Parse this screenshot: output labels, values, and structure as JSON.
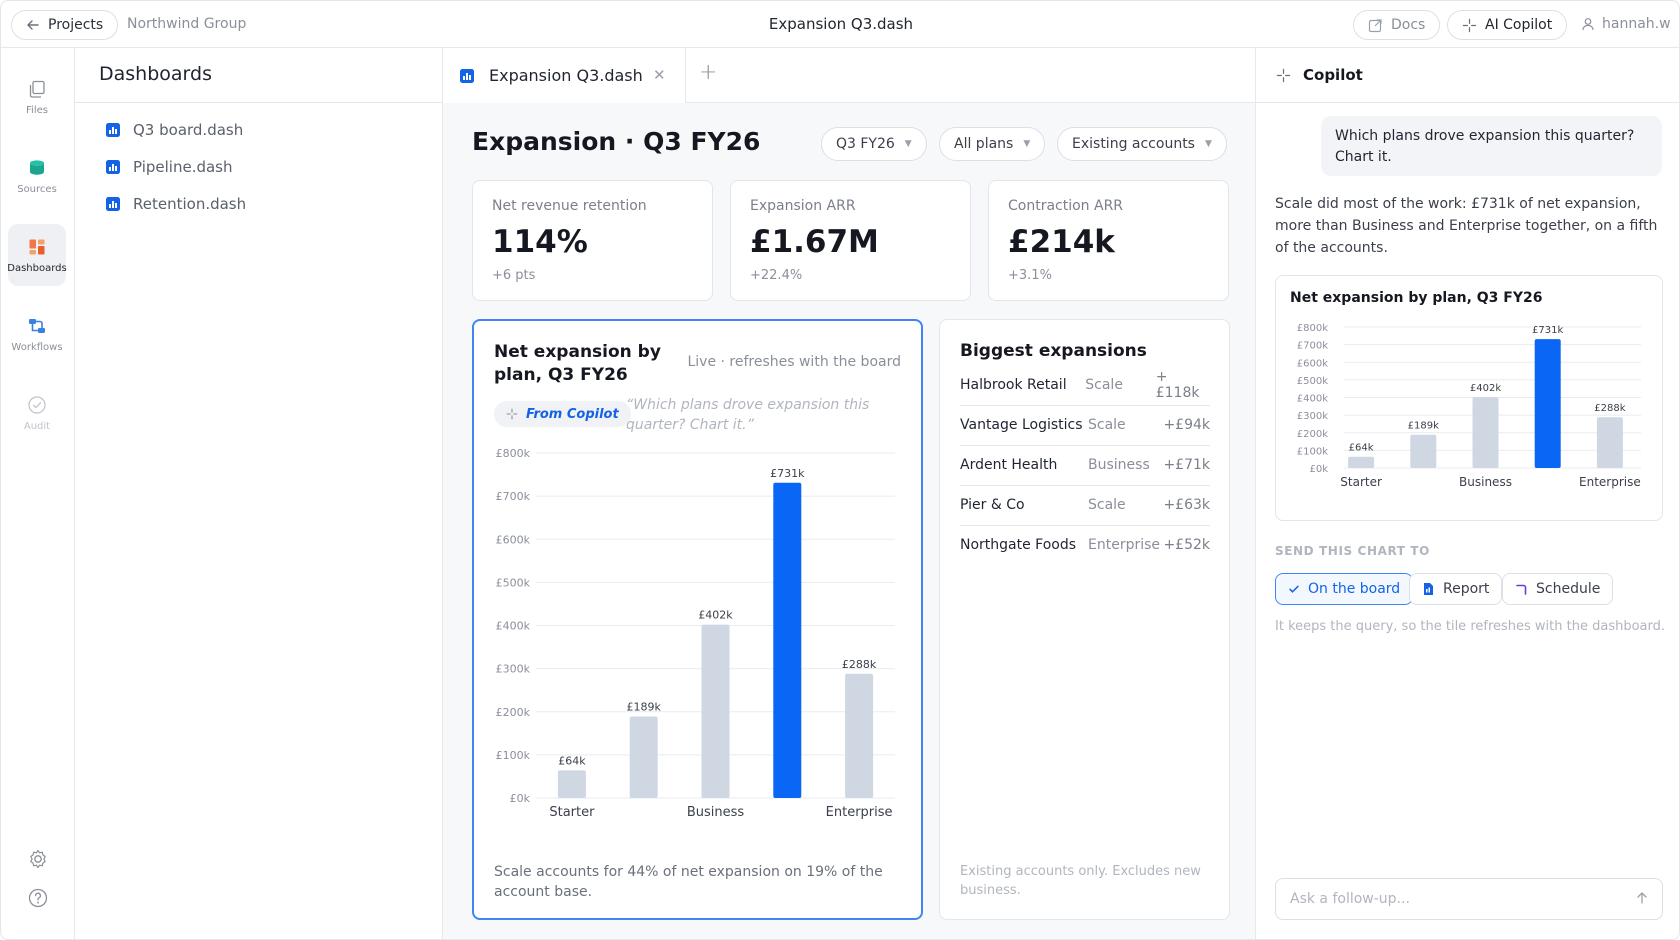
{
  "topbar": {
    "back_label": "Projects",
    "org": "Northwind Group",
    "title": "Expansion Q3.dash",
    "docs_label": "Docs",
    "copilot_label": "AI Copilot",
    "user": "hannah.w"
  },
  "rail": {
    "items": [
      {
        "label": "Files",
        "icon": "files-icon"
      },
      {
        "label": "Sources",
        "icon": "database-icon"
      },
      {
        "label": "Dashboards",
        "icon": "dashboard-icon",
        "active": true
      },
      {
        "label": "Workflows",
        "icon": "workflow-icon"
      },
      {
        "label": "Audit",
        "icon": "check-circle-icon",
        "disabled": true
      }
    ],
    "bottom_icons": [
      "gear-icon",
      "help-icon"
    ]
  },
  "dashboards": {
    "title": "Dashboards",
    "files": [
      "Q3 board.dash",
      "Pipeline.dash",
      "Retention.dash"
    ]
  },
  "tabs": {
    "active_label": "Expansion Q3.dash"
  },
  "main": {
    "title": "Expansion · Q3 FY26",
    "filters": [
      "Q3 FY26",
      "All plans",
      "Existing accounts"
    ],
    "kpis": [
      {
        "label": "Net revenue retention",
        "value": "114%",
        "delta": "+6 pts"
      },
      {
        "label": "Expansion ARR",
        "value": "£1.67M",
        "delta": "+22.4%"
      },
      {
        "label": "Contraction ARR",
        "value": "£214k",
        "delta": "+3.1%"
      }
    ],
    "chart_card": {
      "title": "Net expansion by plan, Q3 FY26",
      "live": "Live · refreshes with the board",
      "badge": "From Copilot",
      "quote": "“Which plans drove expansion this quarter? Chart it.”",
      "footnote": "Scale accounts for 44% of net expansion on 19% of the account base."
    },
    "list_card": {
      "title": "Biggest expansions",
      "rows": [
        {
          "name": "Halbrook Retail",
          "plan": "Scale",
          "value": "+£118k"
        },
        {
          "name": "Vantage Logistics",
          "plan": "Scale",
          "value": "+£94k"
        },
        {
          "name": "Ardent Health",
          "plan": "Business",
          "value": "+£71k"
        },
        {
          "name": "Pier & Co",
          "plan": "Scale",
          "value": "+£63k"
        },
        {
          "name": "Northgate Foods",
          "plan": "Enterprise",
          "value": "+£52k"
        }
      ],
      "footnote": "Existing accounts only. Excludes new business."
    }
  },
  "copilot": {
    "title": "Copilot",
    "user_message": "Which plans drove expansion this quarter? Chart it.",
    "answer": "Scale did most of the work: £731k of net expansion, more than Business and Enterprise together, on a fifth of the accounts.",
    "send_label": "SEND THIS CHART TO",
    "actions": [
      "On the board",
      "Report",
      "Schedule"
    ],
    "note": "It keeps the query, so the tile refreshes with the dashboard.",
    "input_placeholder": "Ask a follow-up..."
  },
  "colors": {
    "accent": "#0a66f5",
    "bar_muted": "#cfd7e3",
    "text_muted": "#8a8f99"
  },
  "chart_data": [
    {
      "type": "bar",
      "title": "Net expansion by plan, Q3 FY26",
      "categories": [
        "Starter",
        "",
        "Business",
        "",
        "Enterprise"
      ],
      "values": [
        64,
        189,
        402,
        731,
        288
      ],
      "value_labels": [
        "£64k",
        "£189k",
        "£402k",
        "£731k",
        "£288k"
      ],
      "highlight_index": 3,
      "y_ticks": [
        "£0k",
        "£100k",
        "£200k",
        "£300k",
        "£400k",
        "£500k",
        "£600k",
        "£700k",
        "£800k"
      ],
      "ylim": [
        0,
        800
      ],
      "grid": true
    },
    {
      "type": "bar",
      "title": "Net expansion by plan, Q3 FY26",
      "categories": [
        "Starter",
        "",
        "Business",
        "",
        "Enterprise"
      ],
      "values": [
        64,
        189,
        402,
        731,
        288
      ],
      "value_labels": [
        "£64k",
        "£189k",
        "£402k",
        "£731k",
        "£288k"
      ],
      "highlight_index": 3,
      "y_ticks": [
        "£0k",
        "£100k",
        "£200k",
        "£300k",
        "£400k",
        "£500k",
        "£600k",
        "£700k",
        "£800k"
      ],
      "ylim": [
        0,
        800
      ],
      "grid": true
    }
  ]
}
